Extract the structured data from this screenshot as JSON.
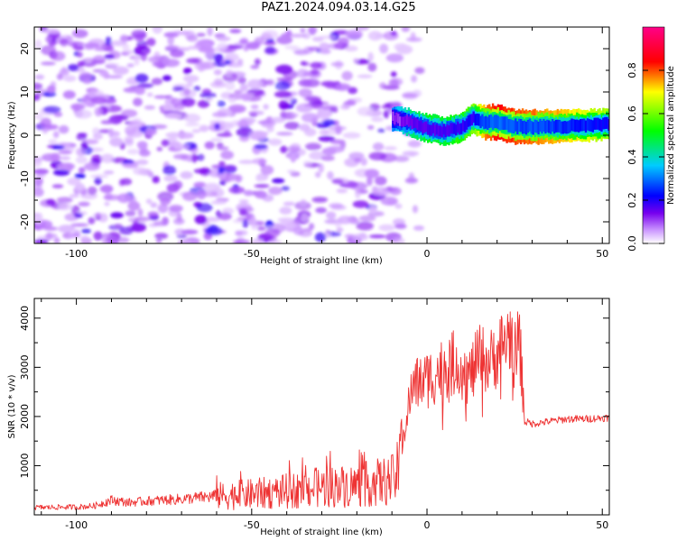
{
  "title": "PAZ1.2024.094.03.14.G25",
  "chart_data": [
    {
      "type": "heatmap",
      "xlabel": "Height of straight line (km)",
      "ylabel": "Frequency (Hz)",
      "xlim": [
        -112,
        52
      ],
      "ylim": [
        -25,
        25
      ],
      "xticks": [
        -100,
        -50,
        0,
        50
      ],
      "yticks": [
        -20,
        -10,
        0,
        10,
        20
      ],
      "colorbar": {
        "label": "Normalized spectral amplitude",
        "range": [
          0,
          1
        ],
        "ticks": [
          "0.0",
          "0.2",
          "0.4",
          "0.6",
          "0.8"
        ],
        "colormap": [
          "#ffffff",
          "#cc99ff",
          "#7700ee",
          "#0000ff",
          "#00ccff",
          "#00ff00",
          "#ffff00",
          "#ff0000",
          "#ff0088"
        ]
      },
      "noise_region": {
        "x_range": [
          -112,
          -10
        ],
        "y_range": [
          -25,
          25
        ],
        "typical_amplitude": 0.15
      },
      "signal_ridge": {
        "x": [
          -10,
          -5,
          0,
          5,
          10,
          13,
          16,
          20,
          25,
          30,
          40,
          52
        ],
        "frequency": [
          4,
          3,
          1.5,
          1,
          2,
          4,
          3,
          3,
          2,
          2,
          2,
          2.5
        ],
        "amplitude": [
          0.3,
          0.45,
          0.5,
          0.5,
          0.55,
          0.6,
          0.75,
          0.85,
          0.8,
          0.78,
          0.72,
          0.62
        ]
      }
    },
    {
      "type": "line",
      "xlabel": "Height of straight line (km)",
      "ylabel": "SNR (10 * v/v)",
      "xlim": [
        -112,
        52
      ],
      "ylim": [
        0,
        4400
      ],
      "xticks": [
        -100,
        -50,
        0,
        50
      ],
      "yticks": [
        1000,
        2000,
        3000,
        4000
      ],
      "color": "#ee3333",
      "series": [
        {
          "x": [
            -112,
            -100,
            -95,
            -90,
            -85,
            -80,
            -70,
            -60,
            -50,
            -40,
            -30,
            -20,
            -15,
            -10,
            -8,
            -6,
            -4,
            -2,
            0,
            3,
            6,
            9,
            12,
            15,
            18,
            21,
            24,
            26,
            27,
            28,
            30,
            35,
            40,
            45,
            52
          ],
          "y": [
            150,
            160,
            180,
            300,
            250,
            280,
            320,
            380,
            420,
            480,
            560,
            600,
            650,
            700,
            900,
            2000,
            2600,
            2700,
            2750,
            2900,
            3050,
            3100,
            2800,
            3200,
            3100,
            3400,
            3700,
            3600,
            3000,
            1900,
            1850,
            1900,
            1950,
            1950,
            1980
          ]
        }
      ]
    }
  ]
}
